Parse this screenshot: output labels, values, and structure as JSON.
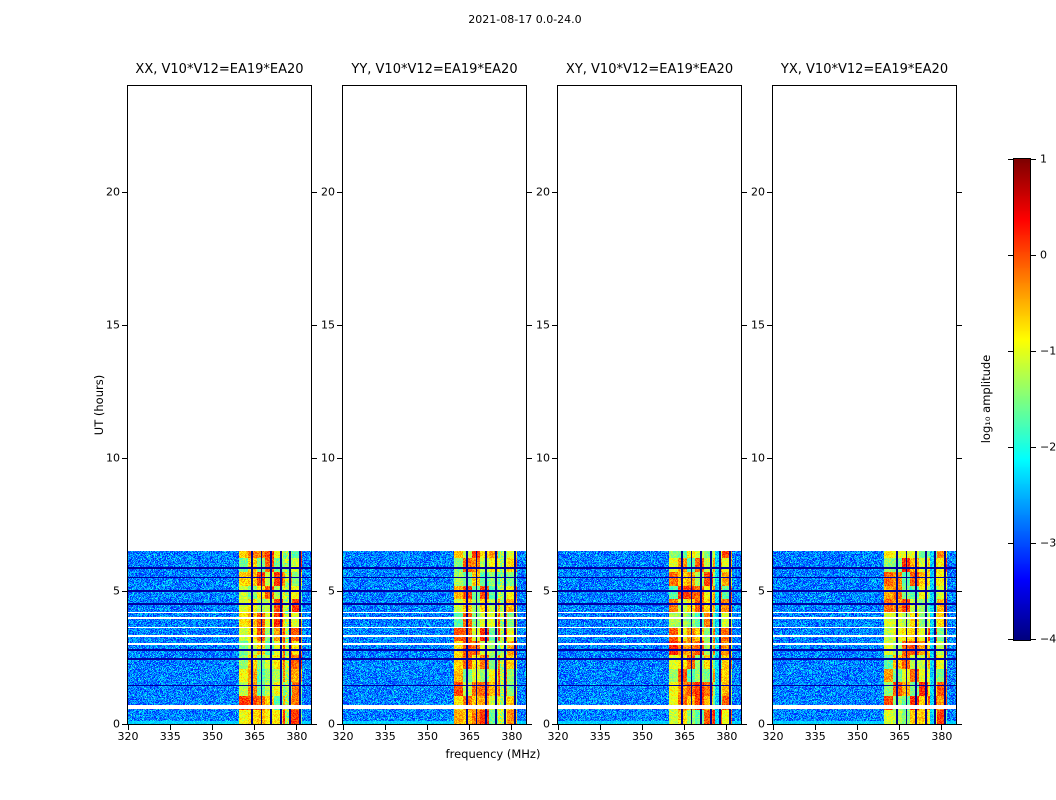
{
  "figure": {
    "title": "2021-08-17 0.0-24.0"
  },
  "axes": {
    "xlabel": "frequency (MHz)",
    "ylabel": "UT (hours)",
    "x_range": [
      320,
      385
    ],
    "y_range": [
      0,
      24
    ],
    "x_ticks": [
      320,
      335,
      350,
      365,
      380
    ],
    "y_ticks": [
      0,
      5,
      10,
      15,
      20
    ]
  },
  "panels": [
    {
      "id": "XX",
      "title": "XX, V10*V12=EA19*EA20",
      "rfi_gap_strength": "weak"
    },
    {
      "id": "YY",
      "title": "YY, V10*V12=EA19*EA20",
      "rfi_gap_strength": "weak"
    },
    {
      "id": "XY",
      "title": "XY, V10*V12=EA19*EA20",
      "rfi_gap_strength": "strong"
    },
    {
      "id": "YX",
      "title": "YX, V10*V12=EA19*EA20",
      "rfi_gap_strength": "strong"
    }
  ],
  "colorbar": {
    "label": "log₁₀ amplitude",
    "min": -4,
    "max": 1,
    "ticks": [
      1,
      0,
      -1,
      -2,
      -3,
      -4
    ],
    "tick_labels": [
      "1",
      "0",
      "−1",
      "−2",
      "−3",
      "−4"
    ],
    "colormap": "jet"
  },
  "chart_data": {
    "type": "heatmap",
    "title": "2021-08-17 0.0-24.0",
    "subplot_titles": [
      "XX, V10*V12=EA19*EA20",
      "YY, V10*V12=EA19*EA20",
      "XY, V10*V12=EA19*EA20",
      "YX, V10*V12=EA19*EA20"
    ],
    "xlabel": "frequency (MHz)",
    "ylabel": "UT (hours)",
    "x_range_mhz": [
      320,
      385
    ],
    "y_range_hours": [
      0,
      24
    ],
    "x_ticks": [
      320,
      335,
      350,
      365,
      380
    ],
    "y_ticks": [
      0,
      5,
      10,
      15,
      20
    ],
    "colorbar": {
      "label": "log₁₀ amplitude",
      "min": -4,
      "max": 1,
      "ticks": [
        1,
        0,
        -1,
        -2,
        -3,
        -4
      ],
      "colormap": "jet"
    },
    "data_time_extent_hours": [
      0.0,
      6.5
    ],
    "background_noise_log_amp": [
      -3.25,
      -2.3
    ],
    "bright_bottom_row_hours": [
      0.0,
      0.12
    ],
    "rfi_band": {
      "freq_mhz": [
        359.5,
        381.8
      ],
      "log_amp": [
        -1.8,
        0.55
      ],
      "dark_line_freqs_mhz": [
        364.0,
        367.4,
        370.8,
        374.2,
        377.6,
        381.0
      ],
      "weak_gap_freq_mhz": [
        375.8,
        377.9
      ],
      "block_size_mhz": 3.1,
      "block_size_hours": 0.52
    },
    "white_gap_hours": [
      [
        0.58,
        0.72
      ],
      [
        2.96,
        3.04
      ],
      [
        3.26,
        3.34
      ],
      [
        3.6,
        3.66
      ],
      [
        3.95,
        4.01
      ],
      [
        4.17,
        4.22
      ]
    ],
    "dark_row_hours": [
      1.45,
      2.45,
      2.78,
      4.5,
      5.0,
      5.5,
      5.85
    ]
  }
}
